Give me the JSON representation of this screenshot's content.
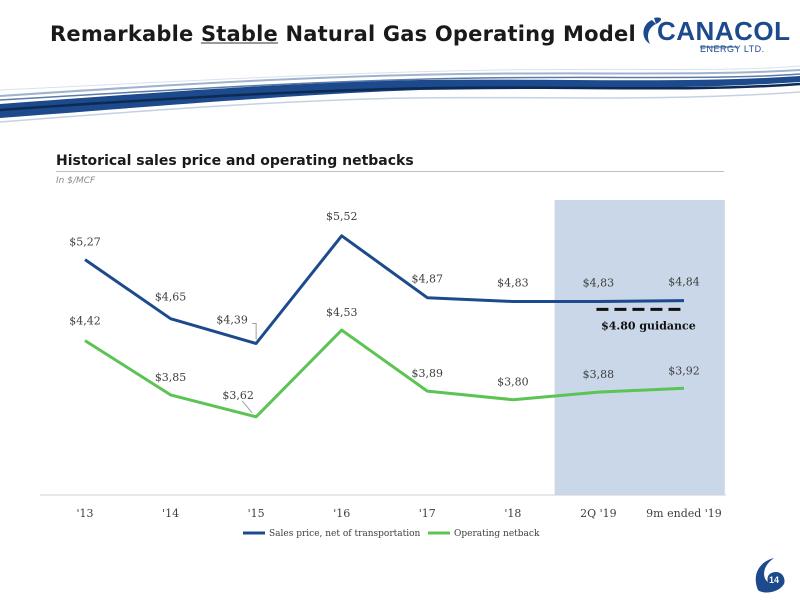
{
  "header": {
    "title_before": "Remarkable",
    "title_emphasis": "Stable",
    "title_after": "Natural Gas Operating Model"
  },
  "logo": {
    "name": "CANACOL",
    "subtitle": "ENERGY LTD.",
    "color": "#1c4a8c"
  },
  "section": {
    "title": "Historical sales price and operating netbacks",
    "units": "In $/MCF"
  },
  "page_number": "14",
  "chart_data": {
    "type": "line",
    "categories": [
      "'13",
      "'14",
      "'15",
      "'16",
      "'17",
      "'18",
      "2Q '19",
      "9m ended '19"
    ],
    "series": [
      {
        "name": "Sales price, net of transportation",
        "values": [
          5.27,
          4.65,
          4.39,
          5.52,
          4.87,
          4.83,
          4.83,
          4.84
        ],
        "labels": [
          "$5,27",
          "$4,65",
          "$4,39",
          "$5,52",
          "$4,87",
          "$4,83",
          "$4,83",
          "$4,84"
        ],
        "color": "#1c4a8c"
      },
      {
        "name": "Operating netback",
        "values": [
          4.42,
          3.85,
          3.62,
          4.53,
          3.89,
          3.8,
          3.88,
          3.92
        ],
        "labels": [
          "$4,42",
          "$3,85",
          "$3,62",
          "$4,53",
          "$3,89",
          "$3,80",
          "$3,88",
          "$3,92"
        ],
        "color": "#5cc454"
      }
    ],
    "highlight": {
      "from_category": "2Q '19",
      "to_category": "9m ended '19",
      "color": "#c9d7e8"
    },
    "guidance": {
      "value": 4.8,
      "label": "$4.80 guidance"
    },
    "ylim": [
      2.8,
      6.0
    ],
    "grid": false,
    "legend_position": "bottom"
  }
}
